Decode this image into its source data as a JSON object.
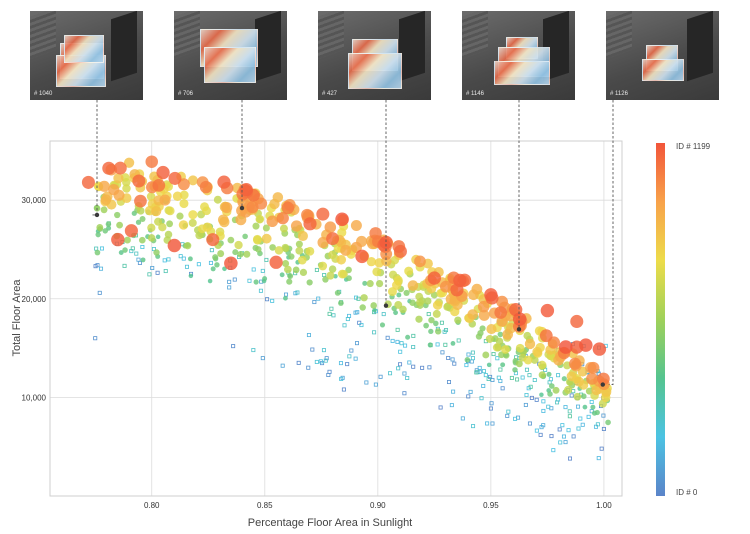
{
  "thumbnails": [
    {
      "label": "# 1040",
      "x": 0.7735,
      "y": 28500
    },
    {
      "label": "# 706",
      "x": 0.8355,
      "y": 29200
    },
    {
      "label": "# 427",
      "x": 0.9025,
      "y": 19300
    },
    {
      "label": "# 1146",
      "x": 0.963,
      "y": 16900
    },
    {
      "label": "# 1126",
      "x": 0.9995,
      "y": 11300
    }
  ],
  "colorbar": {
    "top_label": "ID # 1199",
    "bottom_label": "ID # 0",
    "stops": [
      "#f2553a",
      "#f8a24a",
      "#eddc4a",
      "#9fd15a",
      "#55c48f",
      "#4cc3e3",
      "#5b84c9"
    ]
  },
  "chart_data": {
    "type": "scatter",
    "xlabel": "Percentage Floor Area in Sunlight",
    "ylabel": "Total Floor Area",
    "xlim": [
      0.755,
      1.008
    ],
    "ylim": [
      0,
      36000
    ],
    "xticks": [
      "0.80",
      "0.85",
      "0.90",
      "0.95",
      "1.00"
    ],
    "xtick_values": [
      0.8,
      0.85,
      0.9,
      0.95,
      1.0
    ],
    "yticks": [
      "10,000",
      "20,000",
      "30,000"
    ],
    "ytick_values": [
      10000,
      20000,
      30000
    ],
    "grid": true,
    "color_encoding": "design ID (0 to 1199)",
    "highlighted": [
      {
        "id": 1040,
        "x": 0.7735,
        "y": 28500
      },
      {
        "id": 706,
        "x": 0.8355,
        "y": 29200
      },
      {
        "id": 427,
        "x": 0.9025,
        "y": 19300
      },
      {
        "id": 1146,
        "x": 0.963,
        "y": 16900
      },
      {
        "id": 1126,
        "x": 0.9995,
        "y": 11300
      }
    ],
    "sample_points": [
      {
        "x": 0.772,
        "y": 31800,
        "id": 1150
      },
      {
        "x": 0.779,
        "y": 31400,
        "id": 980
      },
      {
        "x": 0.79,
        "y": 33800,
        "id": 900
      },
      {
        "x": 0.8,
        "y": 33900,
        "id": 1100
      },
      {
        "x": 0.805,
        "y": 32800,
        "id": 1170
      },
      {
        "x": 0.813,
        "y": 32400,
        "id": 850
      },
      {
        "x": 0.795,
        "y": 29900,
        "id": 1120
      },
      {
        "x": 0.785,
        "y": 26000,
        "id": 1180
      },
      {
        "x": 0.791,
        "y": 26900,
        "id": 1160
      },
      {
        "x": 0.81,
        "y": 25400,
        "id": 1190
      },
      {
        "x": 0.835,
        "y": 23600,
        "id": 1195
      },
      {
        "x": 0.827,
        "y": 26000,
        "id": 1150
      },
      {
        "x": 0.845,
        "y": 30500,
        "id": 1130
      },
      {
        "x": 0.855,
        "y": 23700,
        "id": 1170
      },
      {
        "x": 0.87,
        "y": 27600,
        "id": 1160
      },
      {
        "x": 0.88,
        "y": 26100,
        "id": 1140
      },
      {
        "x": 0.893,
        "y": 24300,
        "id": 1180
      },
      {
        "x": 0.91,
        "y": 24800,
        "id": 1150
      },
      {
        "x": 0.925,
        "y": 22100,
        "id": 1170
      },
      {
        "x": 0.935,
        "y": 20900,
        "id": 1160
      },
      {
        "x": 0.95,
        "y": 20400,
        "id": 1175
      },
      {
        "x": 0.961,
        "y": 18900,
        "id": 1165
      },
      {
        "x": 0.975,
        "y": 18800,
        "id": 1180
      },
      {
        "x": 0.988,
        "y": 17700,
        "id": 1150
      },
      {
        "x": 0.992,
        "y": 15300,
        "id": 1190
      },
      {
        "x": 0.998,
        "y": 14900,
        "id": 1185
      },
      {
        "x": 0.988,
        "y": 15100,
        "id": 1170
      },
      {
        "x": 0.775,
        "y": 16000,
        "id": 40
      },
      {
        "x": 0.777,
        "y": 20600,
        "id": 60
      },
      {
        "x": 0.836,
        "y": 15200,
        "id": 30
      },
      {
        "x": 0.865,
        "y": 13500,
        "id": 20
      },
      {
        "x": 0.885,
        "y": 10800,
        "id": 15
      },
      {
        "x": 0.94,
        "y": 10100,
        "id": 25
      },
      {
        "x": 0.972,
        "y": 6200,
        "id": 10
      },
      {
        "x": 0.985,
        "y": 3800,
        "id": 5
      },
      {
        "x": 0.999,
        "y": 4800,
        "id": 2
      },
      {
        "x": 1.0,
        "y": 6800,
        "id": 8
      }
    ]
  }
}
